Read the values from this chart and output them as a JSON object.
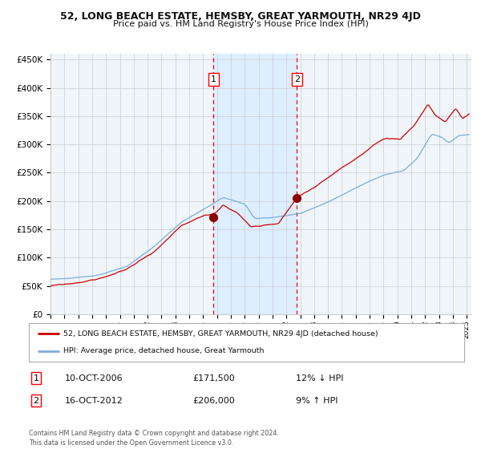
{
  "title": "52, LONG BEACH ESTATE, HEMSBY, GREAT YARMOUTH, NR29 4JD",
  "subtitle": "Price paid vs. HM Land Registry's House Price Index (HPI)",
  "sale1_price": 171500,
  "sale2_price": 206000,
  "legend_red": "52, LONG BEACH ESTATE, HEMSBY, GREAT YARMOUTH, NR29 4JD (detached house)",
  "legend_blue": "HPI: Average price, detached house, Great Yarmouth",
  "footer": "Contains HM Land Registry data © Crown copyright and database right 2024.\nThis data is licensed under the Open Government Licence v3.0.",
  "red_color": "#cc0000",
  "blue_color": "#7aadda",
  "background_color": "#ffffff",
  "grid_color": "#cccccc",
  "highlight_color": "#ddeeff",
  "marker_color": "#8b0000",
  "ylim": [
    0,
    460000
  ],
  "yticks": [
    0,
    50000,
    100000,
    150000,
    200000,
    250000,
    300000,
    350000,
    400000,
    450000
  ]
}
